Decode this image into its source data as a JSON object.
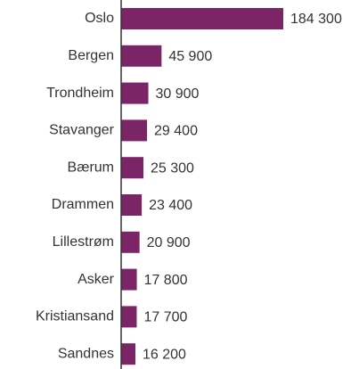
{
  "chart_data": {
    "type": "bar",
    "orientation": "horizontal",
    "categories": [
      "Oslo",
      "Bergen",
      "Trondheim",
      "Stavanger",
      "Bærum",
      "Drammen",
      "Lillestrøm",
      "Asker",
      "Kristiansand",
      "Sandnes"
    ],
    "values": [
      184300,
      45900,
      30900,
      29400,
      25300,
      23400,
      20900,
      17800,
      17700,
      16200
    ],
    "value_labels": [
      "184 300",
      "45 900",
      "30 900",
      "29 400",
      "25 300",
      "23 400",
      "20 900",
      "17 800",
      "17 700",
      "16 200"
    ],
    "color": "#7b2466"
  }
}
